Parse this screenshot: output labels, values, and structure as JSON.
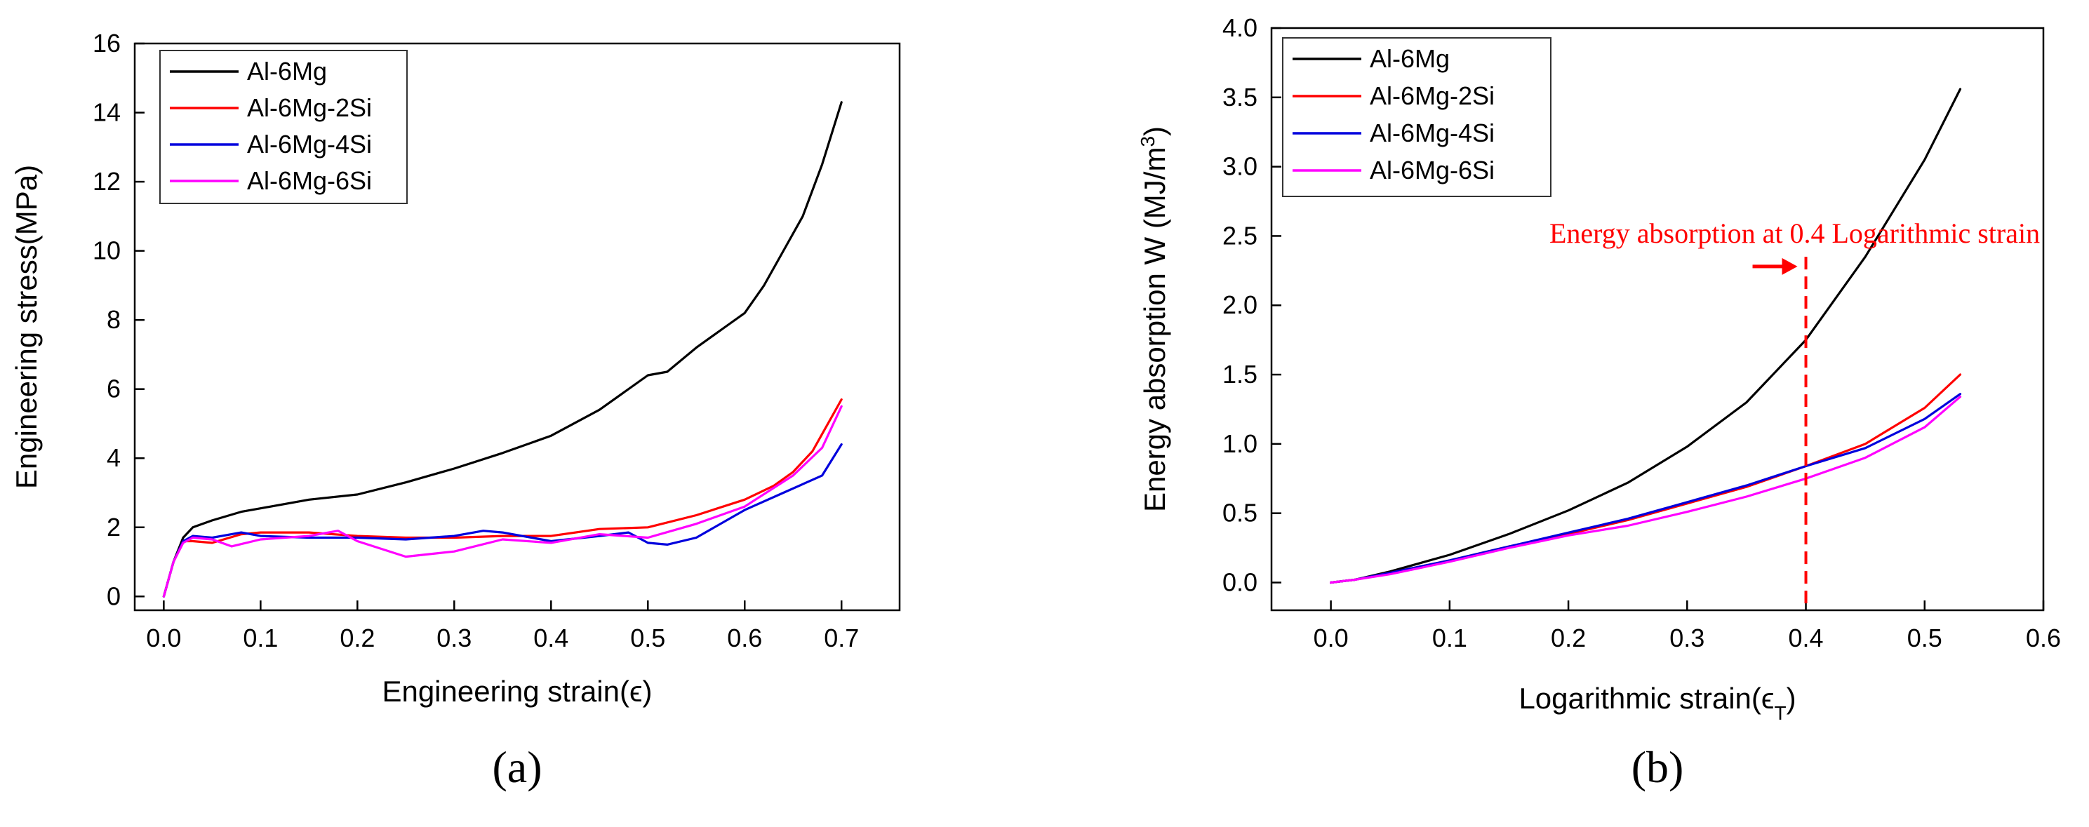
{
  "figure": {
    "colors": {
      "axis": "#000000",
      "annotation": "#ff0000"
    }
  },
  "chart_data": [
    {
      "type": "line",
      "panel_label": "(a)",
      "xlabel": "Engineering strain(ϵ)",
      "ylabel": "Engineering stress(MPa)",
      "xlim": [
        -0.03,
        0.76
      ],
      "ylim": [
        -0.4,
        16
      ],
      "xticks": [
        0.0,
        0.1,
        0.2,
        0.3,
        0.4,
        0.5,
        0.6,
        0.7
      ],
      "xtick_labels": [
        "0.0",
        "0.1",
        "0.2",
        "0.3",
        "0.4",
        "0.5",
        "0.6",
        "0.7"
      ],
      "yticks": [
        0,
        2,
        4,
        6,
        8,
        10,
        12,
        14,
        16
      ],
      "ytick_labels": [
        "0",
        "2",
        "4",
        "6",
        "8",
        "10",
        "12",
        "14",
        "16"
      ],
      "legend_position": "top-left",
      "series": [
        {
          "name": "Al-6Mg",
          "color": "#000000",
          "x": [
            0.0,
            0.01,
            0.02,
            0.03,
            0.05,
            0.08,
            0.1,
            0.15,
            0.2,
            0.25,
            0.3,
            0.35,
            0.4,
            0.45,
            0.5,
            0.52,
            0.55,
            0.58,
            0.6,
            0.62,
            0.64,
            0.66,
            0.68,
            0.7
          ],
          "y": [
            0.0,
            1.0,
            1.7,
            2.0,
            2.2,
            2.45,
            2.55,
            2.8,
            2.95,
            3.3,
            3.7,
            4.15,
            4.65,
            5.4,
            6.4,
            6.5,
            7.2,
            7.8,
            8.2,
            9.0,
            10.0,
            11.0,
            12.5,
            14.3
          ]
        },
        {
          "name": "Al-6Mg-2Si",
          "color": "#ff0000",
          "x": [
            0.0,
            0.01,
            0.02,
            0.03,
            0.05,
            0.08,
            0.1,
            0.15,
            0.2,
            0.25,
            0.3,
            0.35,
            0.4,
            0.45,
            0.5,
            0.55,
            0.6,
            0.63,
            0.65,
            0.67,
            0.7
          ],
          "y": [
            0.0,
            1.0,
            1.6,
            1.6,
            1.55,
            1.8,
            1.85,
            1.85,
            1.75,
            1.7,
            1.7,
            1.75,
            1.75,
            1.95,
            2.0,
            2.35,
            2.8,
            3.2,
            3.6,
            4.2,
            5.7
          ]
        },
        {
          "name": "Al-6Mg-4Si",
          "color": "#0000dd",
          "x": [
            0.0,
            0.01,
            0.02,
            0.03,
            0.05,
            0.08,
            0.1,
            0.15,
            0.2,
            0.25,
            0.3,
            0.33,
            0.35,
            0.4,
            0.45,
            0.48,
            0.5,
            0.52,
            0.55,
            0.6,
            0.64,
            0.68,
            0.7
          ],
          "y": [
            0.0,
            1.0,
            1.6,
            1.75,
            1.7,
            1.85,
            1.75,
            1.7,
            1.7,
            1.65,
            1.75,
            1.9,
            1.85,
            1.6,
            1.75,
            1.85,
            1.55,
            1.5,
            1.7,
            2.5,
            3.0,
            3.5,
            4.4
          ]
        },
        {
          "name": "Al-6Mg-6Si",
          "color": "#ff00ff",
          "x": [
            0.0,
            0.01,
            0.02,
            0.03,
            0.05,
            0.07,
            0.1,
            0.15,
            0.18,
            0.2,
            0.25,
            0.3,
            0.35,
            0.4,
            0.45,
            0.5,
            0.55,
            0.6,
            0.65,
            0.68,
            0.7
          ],
          "y": [
            0.0,
            1.0,
            1.55,
            1.7,
            1.65,
            1.45,
            1.65,
            1.75,
            1.9,
            1.6,
            1.15,
            1.3,
            1.65,
            1.55,
            1.8,
            1.7,
            2.1,
            2.6,
            3.5,
            4.3,
            5.5
          ]
        }
      ]
    },
    {
      "type": "line",
      "panel_label": "(b)",
      "xlabel": "Logarithmic strain(ϵ",
      "xlabel_sub": "T",
      "xlabel_close": ")",
      "ylabel": "Energy absorption W (MJ/m",
      "ylabel_sup": "3",
      "ylabel_close": ")",
      "xlim": [
        -0.05,
        0.6
      ],
      "ylim": [
        -0.2,
        4.0
      ],
      "xticks": [
        0.0,
        0.1,
        0.2,
        0.3,
        0.4,
        0.5,
        0.6
      ],
      "xtick_labels": [
        "0.0",
        "0.1",
        "0.2",
        "0.3",
        "0.4",
        "0.5",
        "0.6"
      ],
      "yticks": [
        0.0,
        0.5,
        1.0,
        1.5,
        2.0,
        2.5,
        3.0,
        3.5,
        4.0
      ],
      "ytick_labels": [
        "0.0",
        "0.5",
        "1.0",
        "1.5",
        "2.0",
        "2.5",
        "3.0",
        "3.5",
        "4.0"
      ],
      "legend_position": "top-left",
      "annotation": {
        "text": "Energy absorption at 0.4 Logarithmic strain",
        "x": 0.4,
        "arrow_y": 2.28,
        "line_top": 2.35
      },
      "series": [
        {
          "name": "Al-6Mg",
          "color": "#000000",
          "x": [
            0.0,
            0.02,
            0.05,
            0.1,
            0.15,
            0.2,
            0.25,
            0.3,
            0.35,
            0.4,
            0.45,
            0.5,
            0.53
          ],
          "y": [
            0.0,
            0.02,
            0.08,
            0.2,
            0.35,
            0.52,
            0.72,
            0.98,
            1.3,
            1.75,
            2.35,
            3.05,
            3.56
          ]
        },
        {
          "name": "Al-6Mg-2Si",
          "color": "#ff0000",
          "x": [
            0.0,
            0.02,
            0.05,
            0.1,
            0.15,
            0.2,
            0.25,
            0.3,
            0.35,
            0.4,
            0.45,
            0.5,
            0.53
          ],
          "y": [
            0.0,
            0.02,
            0.07,
            0.16,
            0.26,
            0.35,
            0.45,
            0.57,
            0.69,
            0.84,
            1.0,
            1.26,
            1.5
          ]
        },
        {
          "name": "Al-6Mg-4Si",
          "color": "#0000dd",
          "x": [
            0.0,
            0.02,
            0.05,
            0.1,
            0.15,
            0.2,
            0.25,
            0.3,
            0.35,
            0.4,
            0.45,
            0.5,
            0.53
          ],
          "y": [
            0.0,
            0.02,
            0.07,
            0.16,
            0.26,
            0.36,
            0.46,
            0.58,
            0.7,
            0.84,
            0.97,
            1.18,
            1.36
          ]
        },
        {
          "name": "Al-6Mg-6Si",
          "color": "#ff00ff",
          "x": [
            0.0,
            0.02,
            0.05,
            0.1,
            0.15,
            0.2,
            0.25,
            0.3,
            0.35,
            0.4,
            0.45,
            0.5,
            0.53
          ],
          "y": [
            0.0,
            0.02,
            0.06,
            0.15,
            0.25,
            0.34,
            0.41,
            0.51,
            0.62,
            0.75,
            0.9,
            1.12,
            1.34
          ]
        }
      ]
    }
  ]
}
